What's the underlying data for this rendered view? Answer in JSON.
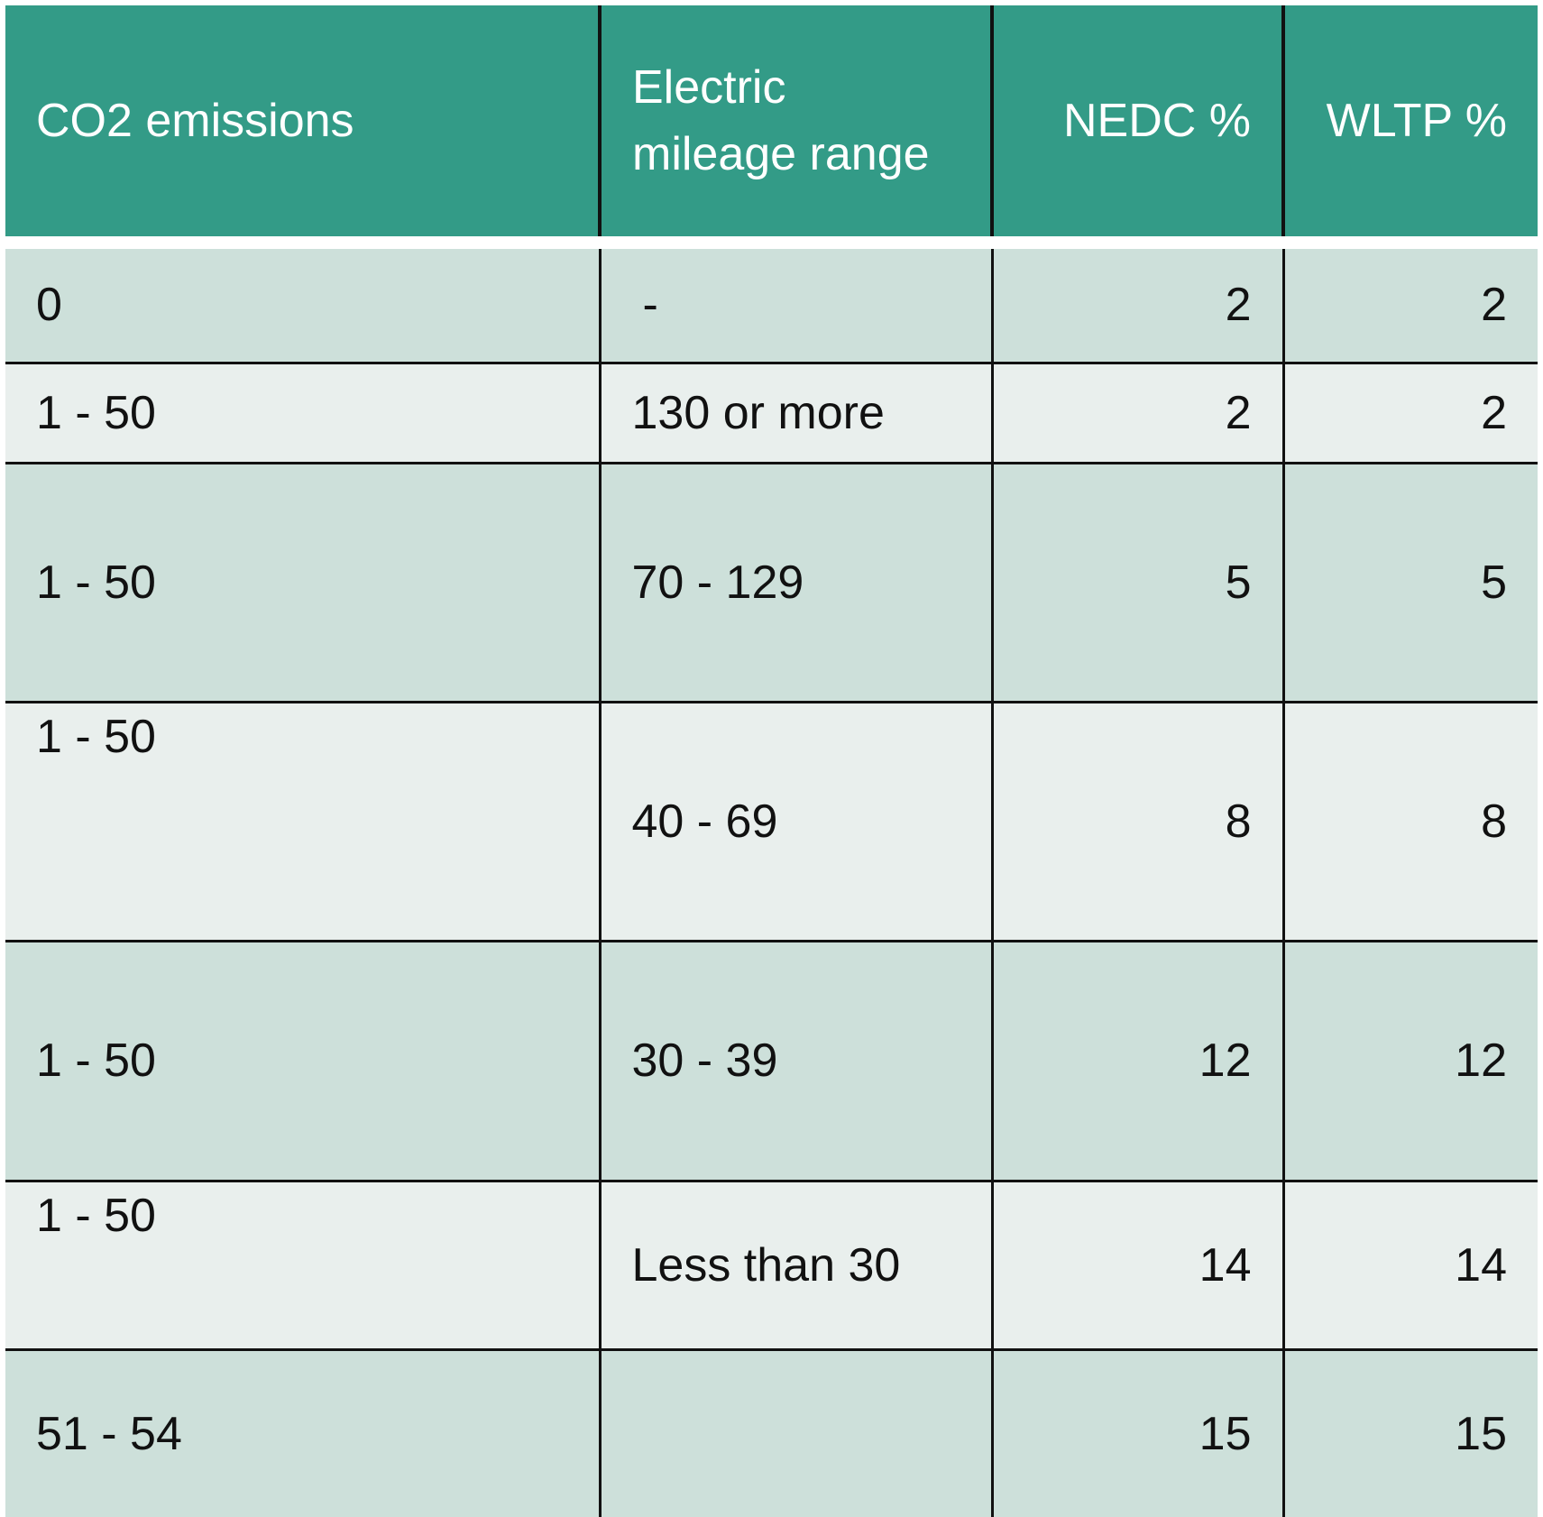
{
  "table": {
    "headers": {
      "co2": "CO2 emissions",
      "range": "Electric mileage range",
      "nedc": "NEDC %",
      "wltp": "WLTP %"
    },
    "rows": [
      {
        "co2": "0",
        "range": "-",
        "nedc": "2",
        "wltp": "2"
      },
      {
        "co2": "1 - 50",
        "range": "130 or more",
        "nedc": "2",
        "wltp": "2"
      },
      {
        "co2": "1 - 50",
        "range": "70 - 129",
        "nedc": "5",
        "wltp": "5"
      },
      {
        "co2": "1 - 50",
        "range": "40 - 69",
        "nedc": "8",
        "wltp": "8"
      },
      {
        "co2": "1 - 50",
        "range": "30 - 39",
        "nedc": "12",
        "wltp": "12"
      },
      {
        "co2": "1 - 50",
        "range": "Less than 30",
        "nedc": "14",
        "wltp": "14"
      },
      {
        "co2": "51 - 54",
        "range": "",
        "nedc": "15",
        "wltp": "15"
      }
    ]
  },
  "colors": {
    "header_bg": "#339b87",
    "header_text": "#ffffff",
    "row_dark": "#cde0da",
    "row_light": "#e9efed",
    "grid_line": "#111111"
  }
}
